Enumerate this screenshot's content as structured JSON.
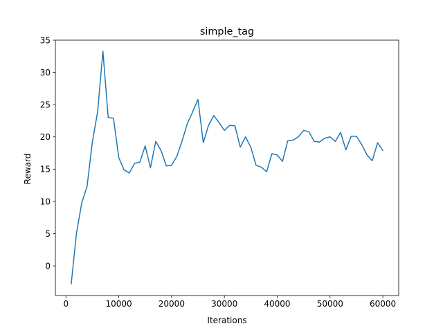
{
  "chart_data": {
    "type": "line",
    "title": "simple_tag",
    "xlabel": "Iterations",
    "ylabel": "Reward",
    "xlim": [
      -2000,
      63000
    ],
    "ylim": [
      -4.6,
      35
    ],
    "xticks": [
      0,
      10000,
      20000,
      30000,
      40000,
      50000,
      60000
    ],
    "xtick_labels": [
      "0",
      "10000",
      "20000",
      "30000",
      "40000",
      "50000",
      "60000"
    ],
    "yticks": [
      0,
      5,
      10,
      15,
      20,
      25,
      30,
      35
    ],
    "ytick_labels": [
      "0",
      "5",
      "10",
      "15",
      "20",
      "25",
      "30",
      "35"
    ],
    "grid": false,
    "legend": "none",
    "line_color": "#1f77b4",
    "series": [
      {
        "x": [
          1000,
          2000,
          3000,
          4000,
          5000,
          6000,
          7000,
          8000,
          9000,
          10000,
          11000,
          12000,
          13000,
          14000,
          15000,
          16000,
          17000,
          18000,
          19000,
          20000,
          21000,
          22000,
          23000,
          24000,
          25000,
          26000,
          27000,
          28000,
          29000,
          30000,
          31000,
          32000,
          33000,
          34000,
          35000,
          36000,
          37000,
          38000,
          39000,
          40000,
          41000,
          42000,
          43000,
          44000,
          45000,
          46000,
          47000,
          48000,
          49000,
          50000,
          51000,
          52000,
          53000,
          54000,
          55000,
          56000,
          57000,
          58000,
          59000,
          60000
        ],
        "values": [
          -2.8,
          5.1,
          9.8,
          12.3,
          19.2,
          23.9,
          33.3,
          23.0,
          22.9,
          16.8,
          14.9,
          14.4,
          15.9,
          16.1,
          18.6,
          15.2,
          19.3,
          17.9,
          15.5,
          15.6,
          17.0,
          19.4,
          22.1,
          23.9,
          25.8,
          19.1,
          21.8,
          23.3,
          22.2,
          21.0,
          21.8,
          21.7,
          18.4,
          20.0,
          18.4,
          15.6,
          15.3,
          14.6,
          17.4,
          17.2,
          16.2,
          19.4,
          19.5,
          20.0,
          21.0,
          20.8,
          19.3,
          19.2,
          19.8,
          20.0,
          19.3,
          20.7,
          18.0,
          20.1,
          20.1,
          18.8,
          17.2,
          16.3,
          19.1,
          17.9
        ]
      }
    ]
  }
}
